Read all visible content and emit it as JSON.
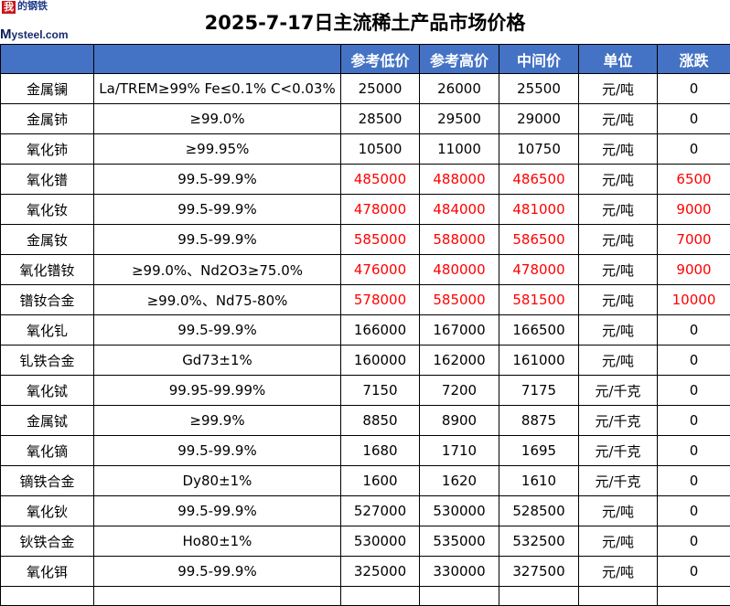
{
  "title": "2025-7-17日主流稀土产品市场价格",
  "logo": {
    "cn_box": "我",
    "cn_chars": "的钢铁",
    "brand_m": "M",
    "brand_rest": "ysteel.com"
  },
  "colors": {
    "header_bg": "#4472c4",
    "up": "#ff0000"
  },
  "columns": [
    "",
    "",
    "参考低价",
    "参考高价",
    "中间价",
    "单位",
    "涨跌"
  ],
  "rows": [
    {
      "name": "金属镧",
      "spec": "La/TREM≥99% Fe≤0.1% C<0.03%",
      "low": "25000",
      "high": "26000",
      "mid": "25500",
      "unit": "元/吨",
      "change": "0",
      "up": false
    },
    {
      "name": "金属铈",
      "spec": "≥99.0%",
      "low": "28500",
      "high": "29500",
      "mid": "29000",
      "unit": "元/吨",
      "change": "0",
      "up": false
    },
    {
      "name": "氧化铈",
      "spec": "≥99.95%",
      "low": "10500",
      "high": "11000",
      "mid": "10750",
      "unit": "元/吨",
      "change": "0",
      "up": false
    },
    {
      "name": "氧化镨",
      "spec": "99.5-99.9%",
      "low": "485000",
      "high": "488000",
      "mid": "486500",
      "unit": "元/吨",
      "change": "6500",
      "up": true
    },
    {
      "name": "氧化钕",
      "spec": "99.5-99.9%",
      "low": "478000",
      "high": "484000",
      "mid": "481000",
      "unit": "元/吨",
      "change": "9000",
      "up": true
    },
    {
      "name": "金属钕",
      "spec": "99.5-99.9%",
      "low": "585000",
      "high": "588000",
      "mid": "586500",
      "unit": "元/吨",
      "change": "7000",
      "up": true
    },
    {
      "name": "氧化镨钕",
      "spec": "≥99.0%、Nd2O3≥75.0%",
      "low": "476000",
      "high": "480000",
      "mid": "478000",
      "unit": "元/吨",
      "change": "9000",
      "up": true
    },
    {
      "name": "镨钕合金",
      "spec": "≥99.0%、Nd75-80%",
      "low": "578000",
      "high": "585000",
      "mid": "581500",
      "unit": "元/吨",
      "change": "10000",
      "up": true
    },
    {
      "name": "氧化钆",
      "spec": "99.5-99.9%",
      "low": "166000",
      "high": "167000",
      "mid": "166500",
      "unit": "元/吨",
      "change": "0",
      "up": false
    },
    {
      "name": "钆铁合金",
      "spec": "Gd73±1%",
      "low": "160000",
      "high": "162000",
      "mid": "161000",
      "unit": "元/吨",
      "change": "0",
      "up": false
    },
    {
      "name": "氧化铽",
      "spec": "99.95-99.99%",
      "low": "7150",
      "high": "7200",
      "mid": "7175",
      "unit": "元/千克",
      "change": "0",
      "up": false
    },
    {
      "name": "金属铽",
      "spec": "≥99.9%",
      "low": "8850",
      "high": "8900",
      "mid": "8875",
      "unit": "元/千克",
      "change": "0",
      "up": false
    },
    {
      "name": "氧化镝",
      "spec": "99.5-99.9%",
      "low": "1680",
      "high": "1710",
      "mid": "1695",
      "unit": "元/千克",
      "change": "0",
      "up": false
    },
    {
      "name": "镝铁合金",
      "spec": "Dy80±1%",
      "low": "1600",
      "high": "1620",
      "mid": "1610",
      "unit": "元/千克",
      "change": "0",
      "up": false
    },
    {
      "name": "氧化钬",
      "spec": "99.5-99.9%",
      "low": "527000",
      "high": "530000",
      "mid": "528500",
      "unit": "元/吨",
      "change": "0",
      "up": false
    },
    {
      "name": "钬铁合金",
      "spec": "Ho80±1%",
      "low": "530000",
      "high": "535000",
      "mid": "532500",
      "unit": "元/吨",
      "change": "0",
      "up": false
    },
    {
      "name": "氧化铒",
      "spec": "99.5-99.9%",
      "low": "325000",
      "high": "330000",
      "mid": "327500",
      "unit": "元/吨",
      "change": "0",
      "up": false
    }
  ]
}
